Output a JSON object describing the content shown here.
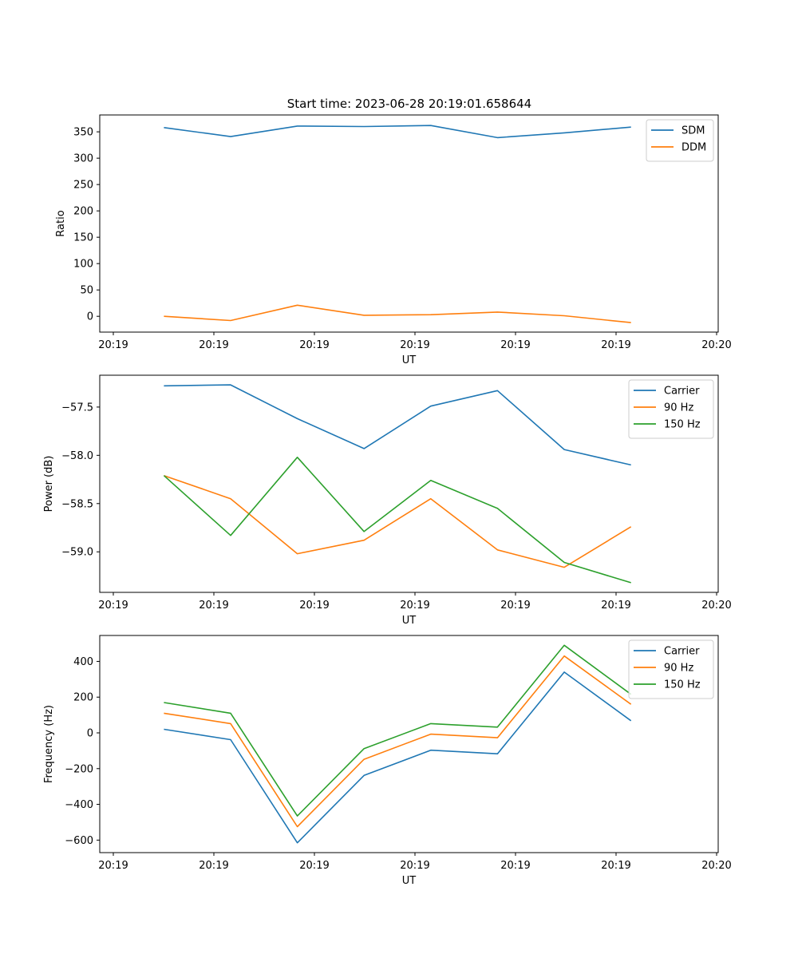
{
  "figure_title": "Start time: 2023-06-28 20:19:01.658644",
  "colors": {
    "blue": "#1f77b4",
    "orange": "#ff7f0e",
    "green": "#2ca02c"
  },
  "chart_data": [
    {
      "type": "line",
      "xlabel": "UT",
      "ylabel": "Ratio",
      "xticks": [
        "20:19",
        "20:19",
        "20:19",
        "20:19",
        "20:19",
        "20:19",
        "20:20"
      ],
      "xlim": [
        -0.25,
        11.8
      ],
      "ylim": [
        -30,
        382
      ],
      "yticks": [
        0,
        50,
        100,
        150,
        200,
        250,
        300,
        350
      ],
      "legend": "top-right",
      "x": [
        1,
        2.3,
        3.6,
        4.9,
        6.2,
        7.5,
        8.8,
        10.1
      ],
      "series": [
        {
          "name": "SDM",
          "color": "#1f77b4",
          "values": [
            358,
            341,
            361,
            360,
            362,
            339,
            348,
            359
          ]
        },
        {
          "name": "DDM",
          "color": "#ff7f0e",
          "values": [
            0,
            -8,
            21,
            2,
            3,
            8,
            1,
            -12
          ]
        }
      ]
    },
    {
      "type": "line",
      "xlabel": "UT",
      "ylabel": "Power (dB)",
      "xticks": [
        "20:19",
        "20:19",
        "20:19",
        "20:19",
        "20:19",
        "20:19",
        "20:20"
      ],
      "xlim": [
        -0.25,
        11.8
      ],
      "ylim": [
        -59.42,
        -57.17
      ],
      "yticks": [
        -59.0,
        -58.5,
        -58.0,
        -57.5
      ],
      "ytick_labels": [
        "−59.0",
        "−58.5",
        "−58.0",
        "−57.5"
      ],
      "legend": "top-right",
      "x": [
        1,
        2.3,
        3.6,
        4.9,
        6.2,
        7.5,
        8.8,
        10.1
      ],
      "series": [
        {
          "name": "Carrier",
          "color": "#1f77b4",
          "values": [
            -57.28,
            -57.27,
            -57.62,
            -57.93,
            -57.49,
            -57.33,
            -57.94,
            -58.1
          ]
        },
        {
          "name": "90 Hz",
          "color": "#ff7f0e",
          "values": [
            -58.21,
            -58.45,
            -59.02,
            -58.88,
            -58.45,
            -58.98,
            -59.16,
            -58.74
          ]
        },
        {
          "name": "150 Hz",
          "color": "#2ca02c",
          "values": [
            -58.21,
            -58.83,
            -58.02,
            -58.79,
            -58.26,
            -58.55,
            -59.11,
            -59.32
          ]
        }
      ]
    },
    {
      "type": "line",
      "xlabel": "UT",
      "ylabel": "Frequency (Hz)",
      "xticks": [
        "20:19",
        "20:19",
        "20:19",
        "20:19",
        "20:19",
        "20:19",
        "20:20"
      ],
      "xlim": [
        -0.25,
        11.8
      ],
      "ylim": [
        -670,
        545
      ],
      "yticks": [
        -600,
        -400,
        -200,
        0,
        200,
        400
      ],
      "ytick_labels": [
        "−600",
        "−400",
        "−200",
        "0",
        "200",
        "400"
      ],
      "legend": "top-right",
      "x": [
        1,
        2.3,
        3.6,
        4.9,
        6.2,
        7.5,
        8.8,
        10.1
      ],
      "series": [
        {
          "name": "Carrier",
          "color": "#1f77b4",
          "values": [
            20,
            -38,
            -615,
            -238,
            -97,
            -117,
            340,
            68
          ]
        },
        {
          "name": "90 Hz",
          "color": "#ff7f0e",
          "values": [
            110,
            52,
            -525,
            -148,
            -7,
            -27,
            430,
            160
          ]
        },
        {
          "name": "150 Hz",
          "color": "#2ca02c",
          "values": [
            170,
            110,
            -465,
            -88,
            52,
            32,
            490,
            216
          ]
        }
      ]
    }
  ]
}
